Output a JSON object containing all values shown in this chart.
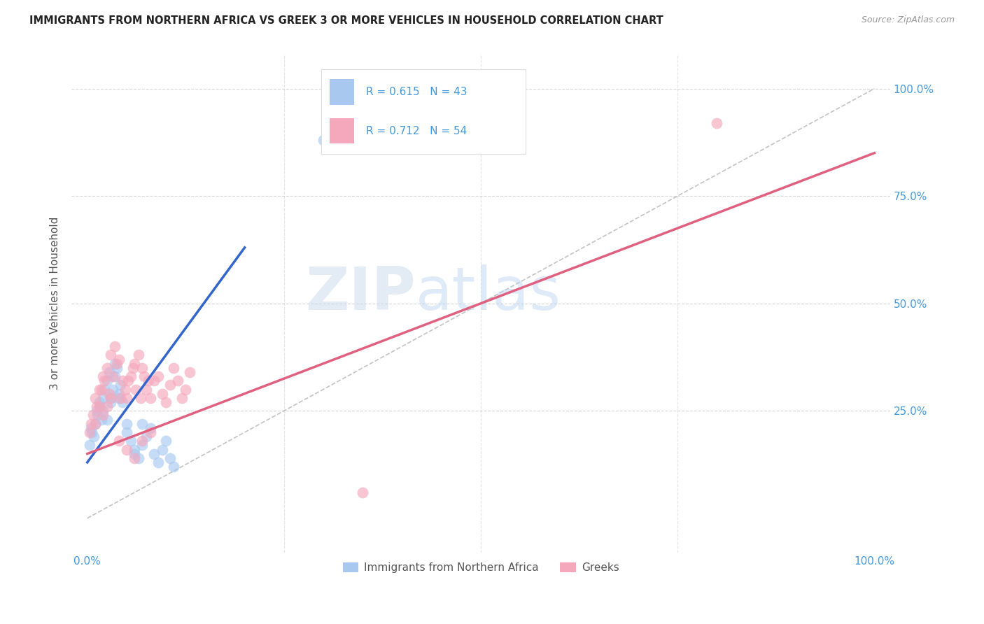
{
  "title": "IMMIGRANTS FROM NORTHERN AFRICA VS GREEK 3 OR MORE VEHICLES IN HOUSEHOLD CORRELATION CHART",
  "source": "Source: ZipAtlas.com",
  "ylabel": "3 or more Vehicles in Household",
  "R_blue": 0.615,
  "N_blue": 43,
  "R_pink": 0.712,
  "N_pink": 54,
  "legend_label_blue": "Immigrants from Northern Africa",
  "legend_label_pink": "Greeks",
  "watermark_zip": "ZIP",
  "watermark_atlas": "atlas",
  "blue_color": "#A8C8F0",
  "pink_color": "#F5A8BC",
  "blue_line_color": "#3366CC",
  "pink_line_color": "#E06080",
  "title_color": "#222222",
  "axis_label_color": "#4499DD",
  "background_color": "#FFFFFF",
  "grid_color": "#CCCCCC",
  "blue_scatter_x": [
    0.5,
    1.2,
    1.5,
    1.8,
    2.0,
    2.2,
    2.5,
    2.8,
    3.0,
    3.2,
    3.5,
    3.8,
    4.0,
    4.2,
    4.5,
    5.0,
    5.5,
    6.0,
    6.5,
    7.0,
    7.5,
    8.0,
    8.5,
    9.0,
    9.5,
    10.0,
    10.5,
    11.0,
    0.3,
    0.6,
    0.8,
    1.0,
    1.3,
    1.6,
    2.0,
    2.5,
    3.0,
    3.5,
    4.0,
    5.0,
    6.0,
    7.0,
    30.0
  ],
  "blue_scatter_y": [
    21.0,
    25.0,
    27.0,
    23.0,
    28.0,
    30.0,
    32.0,
    34.0,
    28.0,
    30.0,
    33.0,
    35.0,
    29.0,
    31.0,
    27.0,
    22.0,
    18.0,
    16.0,
    14.0,
    17.0,
    19.0,
    21.0,
    15.0,
    13.0,
    16.0,
    18.0,
    14.0,
    12.0,
    17.0,
    20.0,
    19.0,
    22.0,
    24.0,
    26.0,
    25.0,
    23.0,
    27.0,
    36.0,
    28.0,
    20.0,
    15.0,
    22.0,
    88.0
  ],
  "pink_scatter_x": [
    0.5,
    1.0,
    1.5,
    2.0,
    2.5,
    3.0,
    3.5,
    4.0,
    4.5,
    5.0,
    5.5,
    6.0,
    6.5,
    7.0,
    7.5,
    8.0,
    8.5,
    9.0,
    9.5,
    10.0,
    10.5,
    11.0,
    11.5,
    12.0,
    12.5,
    13.0,
    1.2,
    1.8,
    2.2,
    2.8,
    3.2,
    3.8,
    4.2,
    4.8,
    5.2,
    5.8,
    6.2,
    6.8,
    7.2,
    7.8,
    0.3,
    0.7,
    1.0,
    1.5,
    2.0,
    2.5,
    3.0,
    4.0,
    5.0,
    6.0,
    7.0,
    8.0,
    80.0,
    35.0
  ],
  "pink_scatter_y": [
    22.0,
    28.0,
    30.0,
    33.0,
    35.0,
    38.0,
    40.0,
    37.0,
    32.0,
    28.0,
    33.0,
    36.0,
    38.0,
    35.0,
    30.0,
    28.0,
    32.0,
    33.0,
    29.0,
    27.0,
    31.0,
    35.0,
    32.0,
    28.0,
    30.0,
    34.0,
    26.0,
    30.0,
    32.0,
    29.0,
    33.0,
    36.0,
    28.0,
    30.0,
    32.0,
    35.0,
    30.0,
    28.0,
    33.0,
    32.0,
    20.0,
    24.0,
    22.0,
    26.0,
    24.0,
    26.0,
    28.0,
    18.0,
    16.0,
    14.0,
    18.0,
    20.0,
    92.0,
    6.0
  ],
  "blue_line_x0": 0.0,
  "blue_line_y0": 13.0,
  "blue_line_x1": 20.0,
  "blue_line_y1": 63.0,
  "pink_line_x0": 0.0,
  "pink_line_y0": 15.0,
  "pink_line_x1": 100.0,
  "pink_line_y1": 85.0,
  "diag_line_x0": 0.0,
  "diag_line_y0": 0.0,
  "diag_line_x1": 100.0,
  "diag_line_y1": 100.0,
  "xlim": [
    -2,
    102
  ],
  "ylim": [
    -8,
    108
  ],
  "ytick_vals": [
    25,
    50,
    75,
    100
  ],
  "ytick_labels": [
    "25.0%",
    "50.0%",
    "75.0%",
    "100.0%"
  ],
  "xtick_vals": [
    0,
    25,
    50,
    75,
    100
  ],
  "xtick_left_label": "0.0%",
  "xtick_right_label": "100.0%"
}
